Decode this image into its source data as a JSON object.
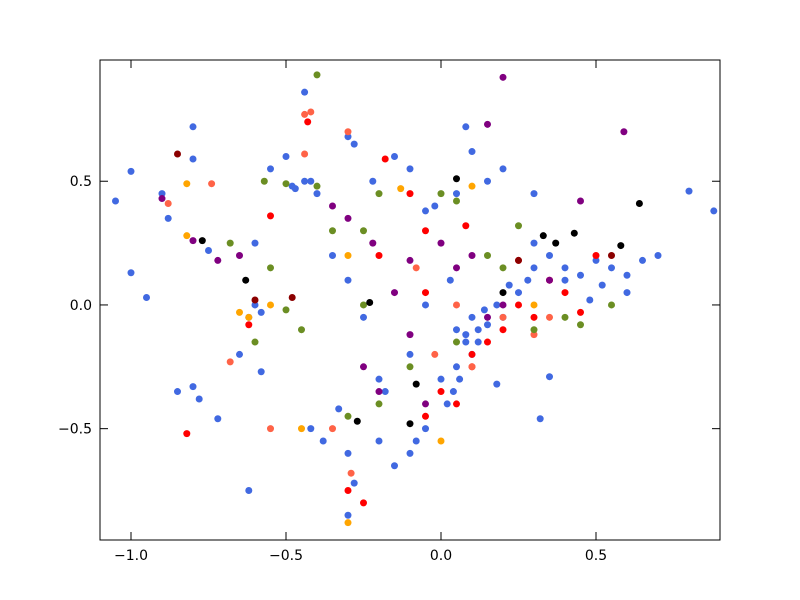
{
  "chart_data": {
    "type": "scatter",
    "xlim": [
      -1.1,
      0.9
    ],
    "ylim": [
      -0.95,
      0.99
    ],
    "xticks": [
      {
        "value": -1.0,
        "label": "−1.0"
      },
      {
        "value": -0.5,
        "label": "−0.5"
      },
      {
        "value": 0,
        "label": "0.0"
      },
      0.5
    ],
    "yticks": [
      {
        "value": -0.5,
        "label": "−0.5"
      },
      {
        "value": 0,
        "label": "0.0"
      },
      0.5
    ],
    "grid": false,
    "series": [
      {
        "color": "#4169e1",
        "x": [
          -1.05,
          -1.0,
          -1.0,
          -0.95,
          -0.9,
          -0.88,
          -0.8,
          -0.8,
          -0.85,
          -0.78,
          -0.8,
          -0.72,
          -0.62,
          -0.58,
          -0.65,
          -0.6,
          -0.62,
          -0.58,
          -0.55,
          -0.5,
          -0.48,
          -0.47,
          -0.44,
          -0.44,
          -0.4,
          -0.42,
          -0.3,
          -0.28,
          -0.22,
          -0.15,
          -0.1,
          -0.05,
          -0.02,
          0.05,
          0.08,
          0.1,
          0.15,
          0.2,
          0.3,
          0.05,
          0.08,
          0.1,
          0.12,
          0.15,
          0.18,
          0.2,
          0.25,
          0.28,
          0.3,
          0.35,
          0.4,
          0.45,
          0.5,
          0.55,
          0.6,
          0.65,
          0.7,
          0.8,
          0.88,
          0.05,
          0.0,
          0.02,
          -0.05,
          -0.08,
          -0.1,
          -0.15,
          -0.2,
          -0.3,
          -0.28,
          -0.3,
          -0.38,
          -0.42,
          -0.33,
          -0.2,
          -0.18,
          0.32,
          0.35,
          0.18,
          -0.1,
          -0.25,
          -0.3,
          -0.35,
          -0.6,
          -0.75,
          0.12,
          0.1,
          0.08,
          0.14,
          0.22,
          0.3,
          0.4,
          0.48,
          0.52,
          0.6,
          0.03,
          -0.05,
          0.06,
          0.04
        ],
        "values": [
          0.42,
          0.54,
          0.13,
          0.03,
          0.45,
          0.35,
          0.72,
          0.59,
          -0.35,
          -0.38,
          -0.33,
          -0.46,
          -0.75,
          -0.27,
          -0.2,
          0.0,
          -0.05,
          -0.03,
          0.55,
          0.6,
          0.48,
          0.47,
          0.86,
          0.5,
          0.45,
          0.5,
          0.68,
          0.65,
          0.5,
          0.6,
          0.55,
          0.38,
          0.4,
          0.45,
          0.72,
          0.62,
          0.5,
          0.55,
          0.45,
          -0.1,
          -0.15,
          -0.05,
          -0.1,
          -0.08,
          0.0,
          -0.05,
          0.05,
          0.1,
          0.15,
          0.2,
          0.15,
          0.12,
          0.18,
          0.15,
          0.12,
          0.18,
          0.2,
          0.46,
          0.38,
          -0.25,
          -0.3,
          -0.4,
          -0.5,
          -0.55,
          -0.6,
          -0.65,
          -0.55,
          -0.6,
          -0.72,
          -0.85,
          -0.55,
          -0.5,
          -0.42,
          -0.3,
          -0.35,
          -0.46,
          -0.29,
          -0.32,
          -0.2,
          -0.05,
          0.1,
          0.2,
          0.25,
          0.22,
          -0.15,
          -0.2,
          -0.12,
          -0.02,
          0.08,
          0.25,
          0.1,
          0.02,
          0.08,
          0.05,
          0.1,
          0.0,
          -0.3,
          -0.35
        ]
      },
      {
        "color": "#ff0000",
        "x": [
          -0.82,
          -0.55,
          -0.62,
          -0.18,
          -0.1,
          0.08,
          -0.05,
          0.1,
          0.15,
          0.2,
          0.25,
          0.3,
          0.4,
          0.45,
          0.25,
          0.35,
          0.05,
          0.0,
          -0.05,
          -0.25,
          -0.3,
          0.1,
          -0.05,
          0.5,
          -0.43,
          -0.2
        ],
        "values": [
          -0.52,
          0.36,
          -0.08,
          0.59,
          0.45,
          0.32,
          0.3,
          -0.2,
          -0.15,
          -0.1,
          0.0,
          -0.05,
          0.05,
          -0.03,
          0.18,
          0.1,
          -0.4,
          -0.35,
          -0.45,
          -0.8,
          -0.75,
          -0.25,
          0.05,
          0.2,
          0.74,
          0.2
        ]
      },
      {
        "color": "#ff6347",
        "x": [
          -0.44,
          -0.42,
          -0.44,
          -0.88,
          -0.74,
          -0.55,
          -0.68,
          -0.3,
          -0.08,
          -0.02,
          0.1,
          0.3,
          0.35,
          -0.29,
          -0.35,
          0.2,
          0.05
        ],
        "values": [
          0.77,
          0.78,
          0.61,
          0.41,
          0.49,
          -0.5,
          -0.23,
          0.7,
          0.15,
          -0.2,
          -0.25,
          -0.12,
          -0.05,
          -0.68,
          -0.5,
          -0.05,
          0.0
        ]
      },
      {
        "color": "#6b8e23",
        "x": [
          -0.4,
          -0.57,
          -0.5,
          -0.4,
          -0.2,
          -0.25,
          -0.35,
          -0.55,
          -0.5,
          -0.45,
          -0.25,
          -0.3,
          -0.2,
          -0.1,
          0.0,
          0.05,
          0.15,
          0.2,
          0.25,
          0.3,
          0.4,
          0.45,
          0.55,
          0.05,
          -0.6,
          -0.68
        ],
        "values": [
          0.93,
          0.5,
          0.49,
          0.48,
          0.45,
          0.3,
          0.3,
          0.15,
          -0.02,
          -0.1,
          0.0,
          -0.45,
          -0.4,
          -0.25,
          0.45,
          0.42,
          0.2,
          0.15,
          0.32,
          -0.1,
          -0.05,
          -0.08,
          0.0,
          -0.15,
          -0.15,
          0.25
        ]
      },
      {
        "color": "#800080",
        "x": [
          0.2,
          0.15,
          0.59,
          -0.9,
          -0.8,
          -0.72,
          -0.65,
          -0.35,
          -0.3,
          -0.22,
          -0.1,
          -0.15,
          -0.1,
          0.0,
          0.05,
          0.2,
          0.15,
          0.45,
          0.35,
          -0.05,
          -0.25,
          -0.2,
          0.1
        ],
        "values": [
          0.92,
          0.73,
          0.7,
          0.43,
          0.26,
          0.18,
          0.2,
          0.4,
          0.35,
          0.25,
          0.18,
          0.05,
          -0.12,
          0.25,
          0.15,
          0.0,
          -0.05,
          0.42,
          0.1,
          -0.4,
          -0.25,
          -0.35,
          0.2
        ]
      },
      {
        "color": "#ffa500",
        "x": [
          -0.82,
          -0.82,
          -0.62,
          -0.65,
          -0.55,
          -0.3,
          -0.45,
          -0.13,
          0.0,
          0.3,
          0.1,
          -0.3
        ],
        "values": [
          0.49,
          0.28,
          -0.05,
          -0.03,
          0.0,
          -0.88,
          -0.5,
          0.47,
          -0.55,
          0.0,
          0.48,
          0.2
        ]
      },
      {
        "color": "#000000",
        "x": [
          0.05,
          0.64,
          0.33,
          0.43,
          0.58,
          -0.77,
          -0.63,
          -0.1,
          -0.08,
          -0.27,
          -0.23,
          0.2,
          0.37
        ],
        "values": [
          0.51,
          0.41,
          0.28,
          0.29,
          0.24,
          0.26,
          0.1,
          -0.48,
          -0.32,
          -0.47,
          0.01,
          0.05,
          0.25
        ]
      },
      {
        "color": "#8b0000",
        "x": [
          -0.85,
          -0.6,
          -0.48,
          0.25,
          0.55
        ],
        "values": [
          0.61,
          0.02,
          0.03,
          0.18,
          0.2
        ]
      }
    ]
  }
}
